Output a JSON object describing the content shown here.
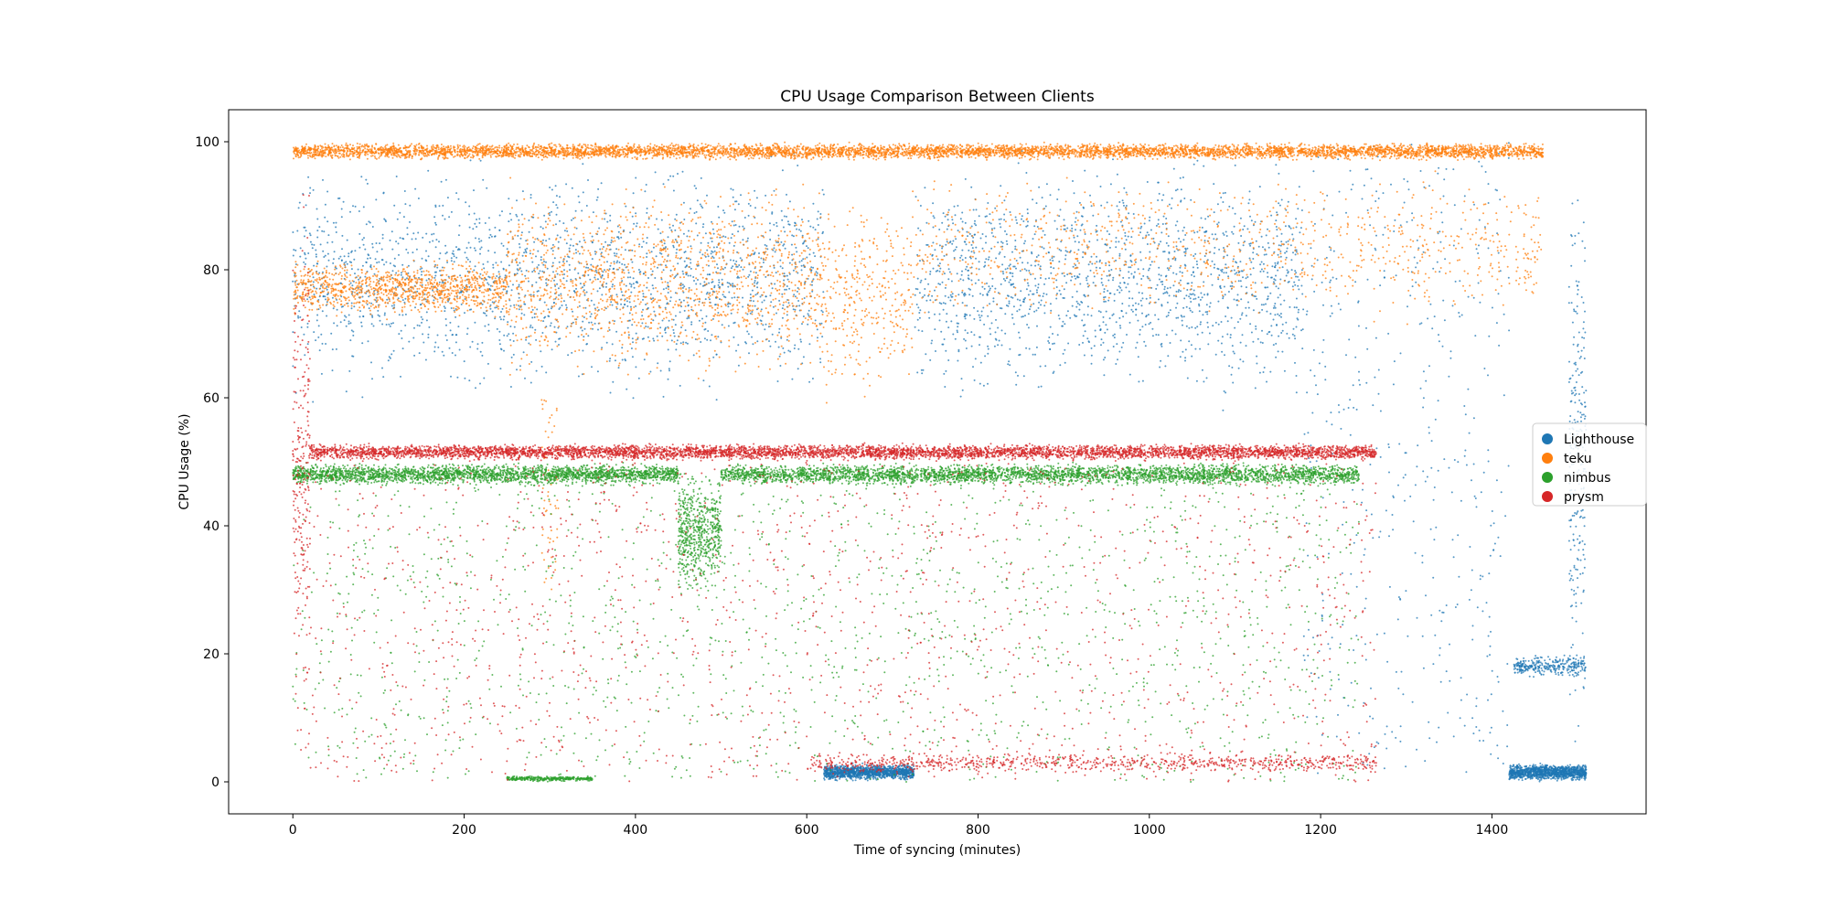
{
  "chart_data": {
    "type": "scatter",
    "title": "CPU Usage Comparison Between Clients",
    "xlabel": "Time of syncing (minutes)",
    "ylabel": "CPU Usage (%)",
    "xlim": [
      -75,
      1580
    ],
    "ylim": [
      -5,
      105
    ],
    "xticks": [
      0,
      200,
      400,
      600,
      800,
      1000,
      1200,
      1400
    ],
    "yticks": [
      0,
      20,
      40,
      60,
      80,
      100
    ],
    "xtick_labels": [
      "0",
      "200",
      "400",
      "600",
      "800",
      "1000",
      "1200",
      "1400"
    ],
    "ytick_labels": [
      "0",
      "20",
      "40",
      "60",
      "80",
      "100"
    ],
    "grid": false,
    "legend_position": "center-right",
    "marker": "small dots, semi-transparent",
    "series": [
      {
        "name": "Lighthouse",
        "color": "#1f77b4",
        "x_range": [
          0,
          1510
        ],
        "dense_regions": [
          {
            "x": [
              0,
              620
            ],
            "y": [
              57,
              100
            ],
            "density": "high"
          },
          {
            "x": [
              620,
              725
            ],
            "y": [
              0,
              3
            ],
            "density": "very high"
          },
          {
            "x": [
              725,
              1180
            ],
            "y": [
              57,
              100
            ],
            "density": "high"
          },
          {
            "x": [
              1180,
              1420
            ],
            "y": [
              0,
              100
            ],
            "density": "sparse"
          },
          {
            "x": [
              1420,
              1510
            ],
            "y": [
              0,
              3
            ],
            "density": "very high"
          },
          {
            "x": [
              1425,
              1510
            ],
            "y": [
              16,
              20
            ],
            "density": "medium"
          },
          {
            "x": [
              1490,
              1510
            ],
            "y": [
              0,
              100
            ],
            "density": "medium"
          }
        ]
      },
      {
        "name": "teku",
        "color": "#ff7f0e",
        "x_range": [
          0,
          1460
        ],
        "dense_regions": [
          {
            "x": [
              0,
              1460
            ],
            "y": [
              97,
              100
            ],
            "density": "very high"
          },
          {
            "x": [
              0,
              250
            ],
            "y": [
              72,
              82
            ],
            "density": "high"
          },
          {
            "x": [
              250,
              620
            ],
            "y": [
              60,
              96
            ],
            "density": "high"
          },
          {
            "x": [
              620,
              725
            ],
            "y": [
              55,
              96
            ],
            "density": "medium"
          },
          {
            "x": [
              725,
              1460
            ],
            "y": [
              70,
              97
            ],
            "density": "medium"
          },
          {
            "x": [
              290,
              310
            ],
            "y": [
              30,
              60
            ],
            "density": "low"
          }
        ]
      },
      {
        "name": "nimbus",
        "color": "#2ca02c",
        "x_range": [
          0,
          1245
        ],
        "dense_regions": [
          {
            "x": [
              0,
              450
            ],
            "y": [
              46,
              50
            ],
            "density": "very high"
          },
          {
            "x": [
              450,
              500
            ],
            "y": [
              28,
              50
            ],
            "density": "high"
          },
          {
            "x": [
              500,
              1245
            ],
            "y": [
              46,
              50
            ],
            "density": "very high"
          },
          {
            "x": [
              0,
              1245
            ],
            "y": [
              0,
              46
            ],
            "density": "sparse"
          },
          {
            "x": [
              250,
              350
            ],
            "y": [
              0,
              1
            ],
            "density": "medium"
          }
        ]
      },
      {
        "name": "prysm",
        "color": "#d62728",
        "x_range": [
          0,
          1265
        ],
        "dense_regions": [
          {
            "x": [
              20,
              1265
            ],
            "y": [
              50,
              53
            ],
            "density": "very high"
          },
          {
            "x": [
              0,
              20
            ],
            "y": [
              0,
              100
            ],
            "density": "medium"
          },
          {
            "x": [
              0,
              1265
            ],
            "y": [
              0,
              50
            ],
            "density": "sparse"
          },
          {
            "x": [
              600,
              1265
            ],
            "y": [
              1,
              5
            ],
            "density": "medium"
          }
        ]
      }
    ]
  }
}
